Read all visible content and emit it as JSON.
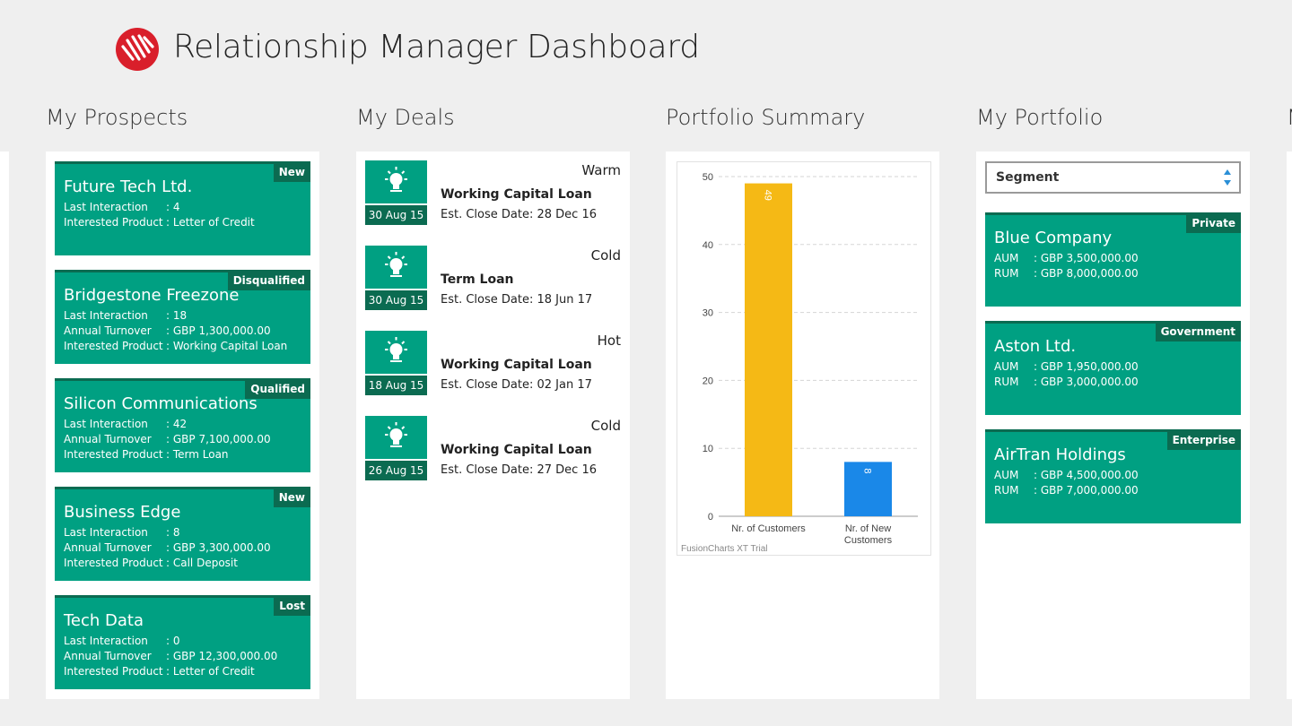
{
  "header": {
    "title": "Relationship Manager Dashboard",
    "logo": "brand-logo"
  },
  "columns": {
    "prospects": "My Prospects",
    "deals": "My Deals",
    "summary": "Portfolio Summary",
    "portfolio": "My Portfolio",
    "next_partial": "M"
  },
  "prospects": [
    {
      "name": "Future Tech Ltd.",
      "status": "New",
      "fields": [
        {
          "k": "Last Interaction",
          "v": ": 4"
        },
        {
          "k": "Interested Product",
          "v": ": Letter of Credit"
        }
      ]
    },
    {
      "name": "Bridgestone Freezone",
      "status": "Disqualified",
      "fields": [
        {
          "k": "Last Interaction",
          "v": ": 18"
        },
        {
          "k": "Annual Turnover",
          "v": ": GBP 1,300,000.00"
        },
        {
          "k": "Interested Product",
          "v": ": Working Capital Loan"
        }
      ]
    },
    {
      "name": "Silicon Communications",
      "status": "Qualified",
      "fields": [
        {
          "k": "Last Interaction",
          "v": ": 42"
        },
        {
          "k": "Annual Turnover",
          "v": ": GBP 7,100,000.00"
        },
        {
          "k": "Interested Product",
          "v": ": Term Loan"
        }
      ]
    },
    {
      "name": "Business Edge",
      "status": "New",
      "fields": [
        {
          "k": "Last Interaction",
          "v": ": 8"
        },
        {
          "k": "Annual Turnover",
          "v": ": GBP 3,300,000.00"
        },
        {
          "k": "Interested Product",
          "v": ": Call Deposit"
        }
      ]
    },
    {
      "name": "Tech Data",
      "status": "Lost",
      "fields": [
        {
          "k": "Last Interaction",
          "v": ": 0"
        },
        {
          "k": "Annual Turnover",
          "v": ": GBP 12,300,000.00"
        },
        {
          "k": "Interested Product",
          "v": ": Letter of Credit"
        }
      ]
    }
  ],
  "deals": [
    {
      "date": "30 Aug 15",
      "temp": "Warm",
      "title": "Working Capital Loan",
      "close": "Est. Close Date: 28 Dec 16",
      "icon": "lightbulb-icon"
    },
    {
      "date": "30 Aug 15",
      "temp": "Cold",
      "title": "Term Loan",
      "close": "Est. Close Date: 18 Jun 17",
      "icon": "lightbulb-icon"
    },
    {
      "date": "18 Aug 15",
      "temp": "Hot",
      "title": "Working Capital Loan",
      "close": "Est. Close Date: 02 Jan 17",
      "icon": "lightbulb-icon"
    },
    {
      "date": "26 Aug 15",
      "temp": "Cold",
      "title": "Working Capital Loan",
      "close": "Est. Close Date: 27 Dec 16",
      "icon": "lightbulb-icon"
    }
  ],
  "chart_data": {
    "type": "bar",
    "categories": [
      "Nr. of Customers",
      "Nr. of New Customers"
    ],
    "values": [
      49,
      8
    ],
    "colors": [
      "#f5b915",
      "#1a88e8"
    ],
    "ylim": [
      0,
      50
    ],
    "yticks": [
      0,
      10,
      20,
      30,
      40,
      50
    ],
    "grid": true,
    "watermark": "FusionCharts XT Trial"
  },
  "portfolio": {
    "select_label": "Segment",
    "items": [
      {
        "name": "Blue Company",
        "segment": "Private",
        "fields": [
          {
            "k": "AUM",
            "v": ": GBP 3,500,000.00"
          },
          {
            "k": "RUM",
            "v": ": GBP 8,000,000.00"
          }
        ]
      },
      {
        "name": "Aston Ltd.",
        "segment": "Government",
        "fields": [
          {
            "k": "AUM",
            "v": ": GBP 1,950,000.00"
          },
          {
            "k": "RUM",
            "v": ": GBP 3,000,000.00"
          }
        ]
      },
      {
        "name": "AirTran Holdings",
        "segment": "Enterprise",
        "fields": [
          {
            "k": "AUM",
            "v": ": GBP 4,500,000.00"
          },
          {
            "k": "RUM",
            "v": ": GBP 7,000,000.00"
          }
        ]
      }
    ]
  }
}
